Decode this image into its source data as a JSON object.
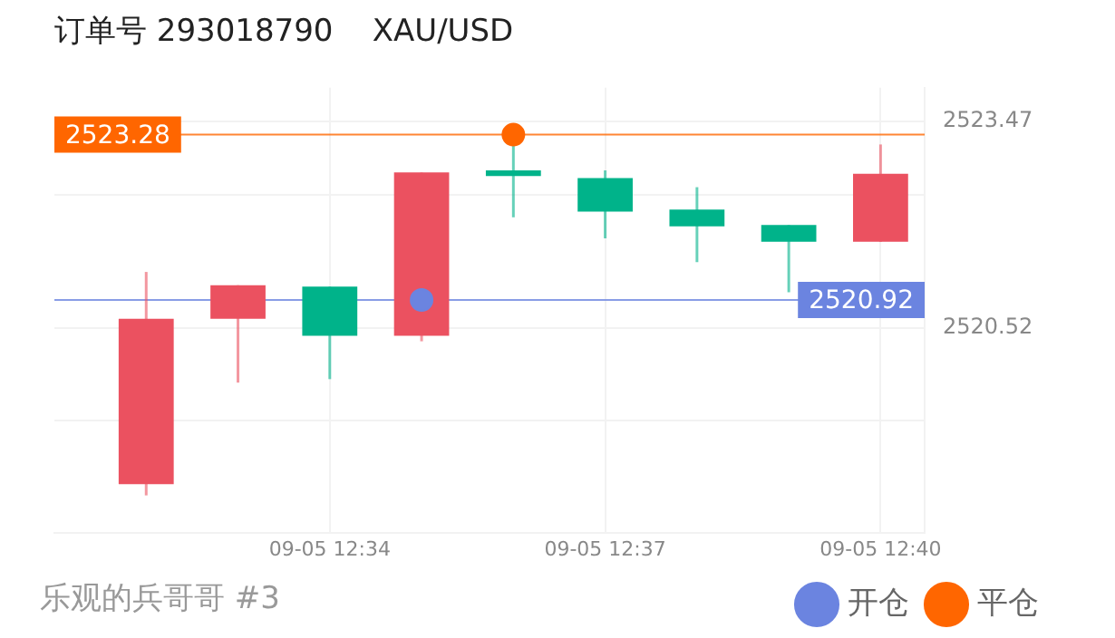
{
  "chart_data": {
    "type": "candlestick",
    "title": "订单号 293018790    XAU/USD",
    "annotations": [
      "乐观的兵哥哥 #3"
    ],
    "categories": [
      null,
      null,
      "09-05 12:34",
      null,
      null,
      "09-05 12:37",
      null,
      null,
      "09-05 12:40"
    ],
    "ohlc": [
      [
        2518.29,
        2521.32,
        2518.13,
        2520.65
      ],
      [
        2520.65,
        2521.13,
        2519.74,
        2521.13
      ],
      [
        2521.11,
        2521.11,
        2519.79,
        2520.41
      ],
      [
        2520.41,
        2522.74,
        2520.33,
        2522.74
      ],
      [
        2522.77,
        2523.17,
        2522.1,
        2522.69
      ],
      [
        2522.66,
        2522.77,
        2521.8,
        2522.18
      ],
      [
        2522.21,
        2522.53,
        2521.46,
        2521.97
      ],
      [
        2521.99,
        2521.99,
        2521.03,
        2521.75
      ],
      [
        2521.75,
        2523.14,
        2521.75,
        2522.72
      ]
    ],
    "colors": [
      "#eb5160",
      "#eb5160",
      "#00b38a",
      "#eb5160",
      "#00b38a",
      "#00b38a",
      "#00b38a",
      "#00b38a",
      "#eb5160"
    ],
    "series": [
      {
        "name": "开仓",
        "type": "scatter",
        "color": "#6b84e0",
        "values": [
          null,
          null,
          null,
          2520.92,
          null,
          null,
          null,
          null,
          null
        ]
      },
      {
        "name": "平仓",
        "type": "scatter",
        "color": "#ff6600",
        "values": [
          null,
          null,
          null,
          null,
          2523.28,
          null,
          null,
          null,
          null
        ]
      }
    ],
    "ylim": [
      2517.6,
      2523.95
    ],
    "yticks": [
      {
        "value": 2519.2,
        "label": null
      },
      2520.52,
      {
        "value": 2522.42,
        "label": null
      },
      2523.47
    ],
    "ref_lines": [
      {
        "axis": "y",
        "value": 2523.28,
        "label": "2523.28",
        "color": "#ff6600"
      },
      {
        "axis": "y",
        "value": 2520.92,
        "label": "2520.92",
        "color": "#6b84e0"
      }
    ],
    "grid": true,
    "legend": "bottom right",
    "marker": "circle"
  }
}
